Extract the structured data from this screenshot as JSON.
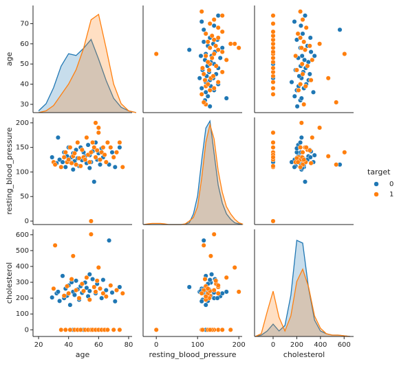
{
  "variables": [
    {
      "label": "age",
      "xlim": [
        16.3,
        82.3
      ],
      "xticks": [
        20,
        40,
        60,
        80
      ],
      "ylim": [
        25.9,
        79
      ],
      "yticks": [
        30,
        40,
        50,
        60,
        70
      ]
    },
    {
      "label": "resting_blood_pressure",
      "xlim": [
        -32,
        208
      ],
      "xticks": [
        0,
        100,
        200
      ],
      "ylim": [
        -7,
        211
      ],
      "yticks": [
        0,
        50,
        100,
        150,
        200
      ]
    },
    {
      "label": "cholesterol",
      "xlim": [
        -157,
        680
      ],
      "xticks": [
        0,
        200,
        400,
        600
      ],
      "ylim": [
        -42,
        634
      ],
      "yticks": [
        0,
        100,
        200,
        300,
        400,
        500,
        600
      ]
    }
  ],
  "groups": {
    "title": "target",
    "series": [
      {
        "name": "0",
        "color": "#1f77b4",
        "columns": [
          [
            29,
            32,
            33,
            34,
            36,
            37,
            38,
            39,
            40,
            41,
            42,
            43,
            43,
            44,
            45,
            46,
            47,
            48,
            49,
            50,
            51,
            52,
            53,
            54,
            54,
            55,
            56,
            57,
            58,
            59,
            60,
            61,
            62,
            63,
            65,
            67,
            69,
            71,
            74
          ],
          [
            130,
            118,
            170,
            125,
            120,
            140,
            110,
            132,
            150,
            120,
            130,
            105,
            138,
            122,
            145,
            128,
            112,
            150,
            124,
            140,
            132,
            118,
            155,
            134,
            108,
            120,
            142,
            80,
            160,
            125,
            138,
            115,
            148,
            130,
            120,
            115,
            140,
            110,
            150
          ],
          [
            204,
            230,
            240,
            182,
            340,
            200,
            260,
            215,
            280,
            157,
            300,
            240,
            0,
            220,
            310,
            255,
            190,
            275,
            233,
            0,
            298,
            265,
            212,
            350,
            245,
            0,
            320,
            270,
            230,
            290,
            0,
            260,
            200,
            315,
            250,
            564,
            235,
            180,
            270
          ]
        ]
      },
      {
        "name": "1",
        "color": "#ff7f0e",
        "columns": [
          [
            30,
            31,
            35,
            37,
            38,
            39,
            40,
            41,
            42,
            43,
            44,
            45,
            46,
            47,
            48,
            49,
            50,
            51,
            52,
            53,
            54,
            55,
            55,
            56,
            57,
            58,
            58,
            59,
            60,
            60,
            61,
            62,
            63,
            64,
            65,
            66,
            68,
            70,
            72,
            74,
            76
          ],
          [
            120,
            115,
            110,
            130,
            140,
            120,
            125,
            150,
            118,
            132,
            138,
            115,
            160,
            128,
            112,
            145,
            130,
            125,
            170,
            135,
            120,
            0,
            140,
            160,
            150,
            130,
            200,
            144,
            180,
            190,
            125,
            140,
            150,
            135,
            120,
            160,
            150,
            130,
            140,
            160,
            110
          ],
          [
            260,
            533,
            0,
            215,
            0,
            275,
            230,
            0,
            320,
            466,
            0,
            250,
            0,
            200,
            0,
            290,
            245,
            0,
            330,
            0,
            190,
            0,
            603,
            0,
            270,
            0,
            240,
            310,
            0,
            393,
            260,
            0,
            230,
            0,
            210,
            0,
            280,
            0,
            250,
            0,
            230
          ]
        ]
      }
    ]
  },
  "chart_data": [
    {
      "type": "kde",
      "x": [
        20,
        25,
        30,
        35,
        40,
        45,
        50,
        55,
        60,
        65,
        70,
        75,
        80,
        85
      ],
      "ylim": [
        0,
        0.06
      ],
      "series": [
        {
          "color": "#1f77b4",
          "values": [
            0.001,
            0.005,
            0.014,
            0.026,
            0.033,
            0.032,
            0.036,
            0.041,
            0.03,
            0.018,
            0.008,
            0.003,
            0.001,
            0
          ]
        },
        {
          "color": "#ff7f0e",
          "values": [
            0,
            0.001,
            0.004,
            0.01,
            0.016,
            0.024,
            0.036,
            0.052,
            0.055,
            0.036,
            0.016,
            0.005,
            0.001,
            0
          ]
        }
      ]
    },
    {
      "type": "scatter"
    },
    {
      "type": "scatter"
    },
    {
      "type": "scatter"
    },
    {
      "type": "kde",
      "x": [
        -30,
        -20,
        -10,
        0,
        10,
        20,
        30,
        40,
        50,
        60,
        70,
        80,
        90,
        100,
        110,
        120,
        130,
        140,
        150,
        160,
        170,
        180,
        190,
        200,
        210
      ],
      "ylim": [
        0,
        0.03
      ],
      "series": [
        {
          "color": "#1f77b4",
          "values": [
            0,
            0,
            0,
            0,
            0,
            0,
            0,
            0,
            0,
            0,
            0.0001,
            0.0005,
            0.003,
            0.008,
            0.018,
            0.027,
            0.029,
            0.02,
            0.011,
            0.006,
            0.003,
            0.0015,
            0.0005,
            0.0002,
            0
          ]
        },
        {
          "color": "#ff7f0e",
          "values": [
            0,
            0.0002,
            0.0003,
            0.0003,
            0.0003,
            0.0002,
            0,
            0,
            0,
            0,
            0.0002,
            0.001,
            0.002,
            0.005,
            0.013,
            0.023,
            0.028,
            0.024,
            0.015,
            0.009,
            0.005,
            0.003,
            0.0015,
            0.0005,
            0.0001
          ]
        }
      ]
    },
    {
      "type": "scatter"
    },
    {
      "type": "scatter"
    },
    {
      "type": "scatter"
    },
    {
      "type": "kde",
      "x": [
        -150,
        -100,
        -50,
        0,
        50,
        100,
        150,
        200,
        250,
        300,
        350,
        400,
        450,
        500,
        550,
        600,
        650
      ],
      "ylim": [
        0,
        0.0078
      ],
      "series": [
        {
          "color": "#1f77b4",
          "values": [
            0,
            0.0001,
            0.0004,
            0.0009,
            0.0004,
            0.0008,
            0.003,
            0.007,
            0.0068,
            0.0035,
            0.0012,
            0.0004,
            0.0002,
            0.0001,
            0.0001,
            5e-05,
            0
          ]
        },
        {
          "color": "#ff7f0e",
          "values": [
            0,
            0.0002,
            0.0018,
            0.0033,
            0.0014,
            0.0004,
            0.0015,
            0.004,
            0.0049,
            0.0036,
            0.0015,
            0.0006,
            0.0002,
            0.0001,
            0.0001,
            5e-05,
            0
          ]
        }
      ]
    }
  ]
}
